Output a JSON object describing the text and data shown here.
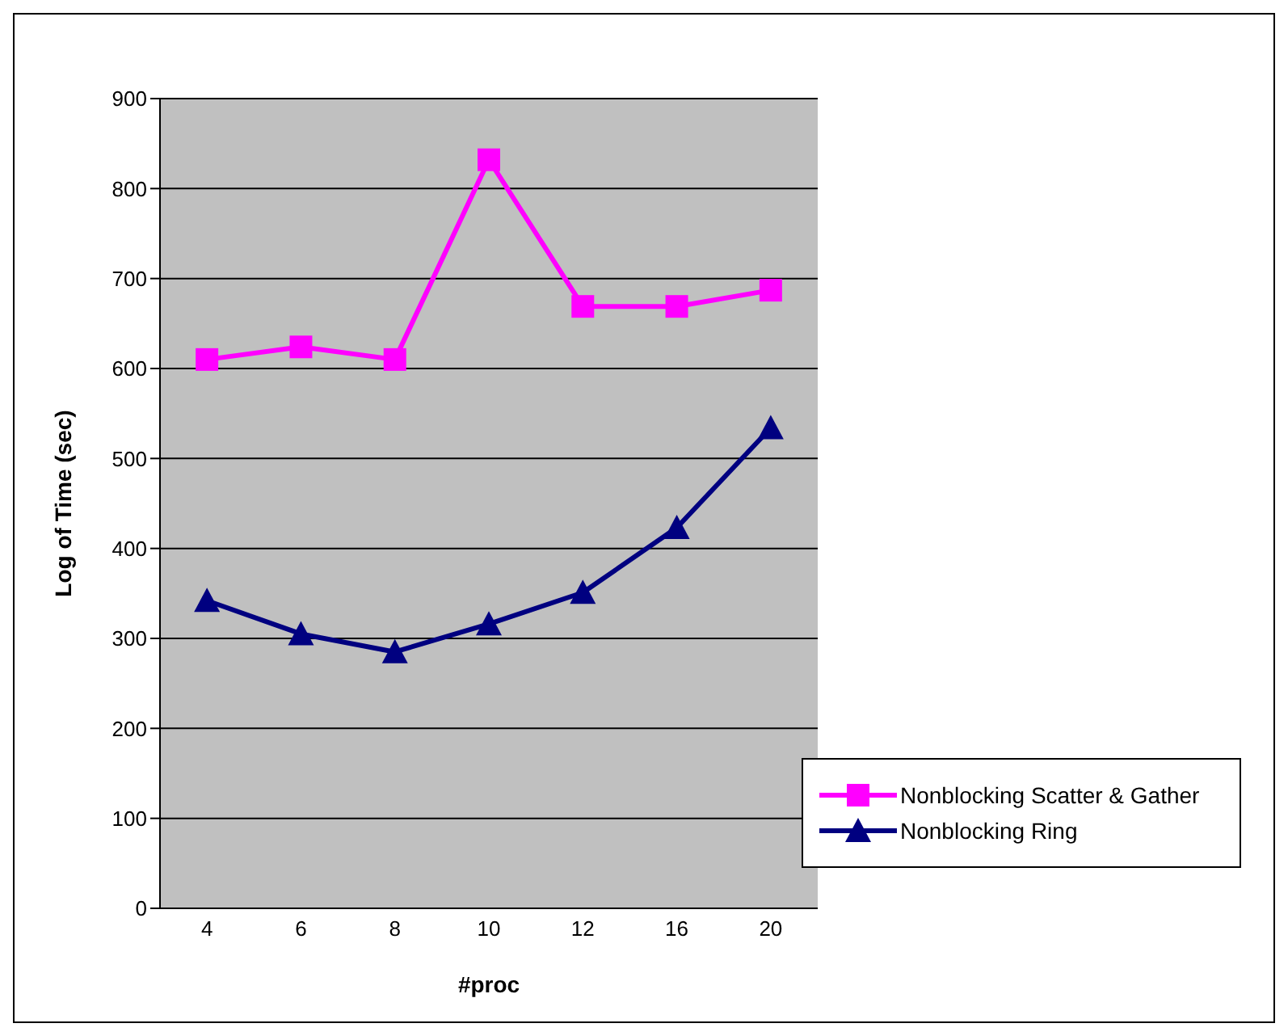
{
  "chart_data": {
    "type": "line",
    "xlabel": "#proc",
    "ylabel": "Log of Time (sec)",
    "categories": [
      "4",
      "6",
      "8",
      "10",
      "12",
      "16",
      "20"
    ],
    "series": [
      {
        "name": "Nonblocking Scatter & Gather",
        "color": "#ff00ff",
        "marker": "square",
        "values": [
          610,
          624,
          610,
          832,
          669,
          669,
          687
        ]
      },
      {
        "name": "Nonblocking Ring",
        "color": "#000080",
        "marker": "triangle",
        "values": [
          342,
          305,
          285,
          316,
          351,
          423,
          534
        ]
      }
    ],
    "ylim": [
      0,
      900
    ],
    "yticks": [
      0,
      100,
      200,
      300,
      400,
      500,
      600,
      700,
      800,
      900
    ],
    "grid": "y",
    "legend": "bottom right",
    "line_style": "solid"
  }
}
